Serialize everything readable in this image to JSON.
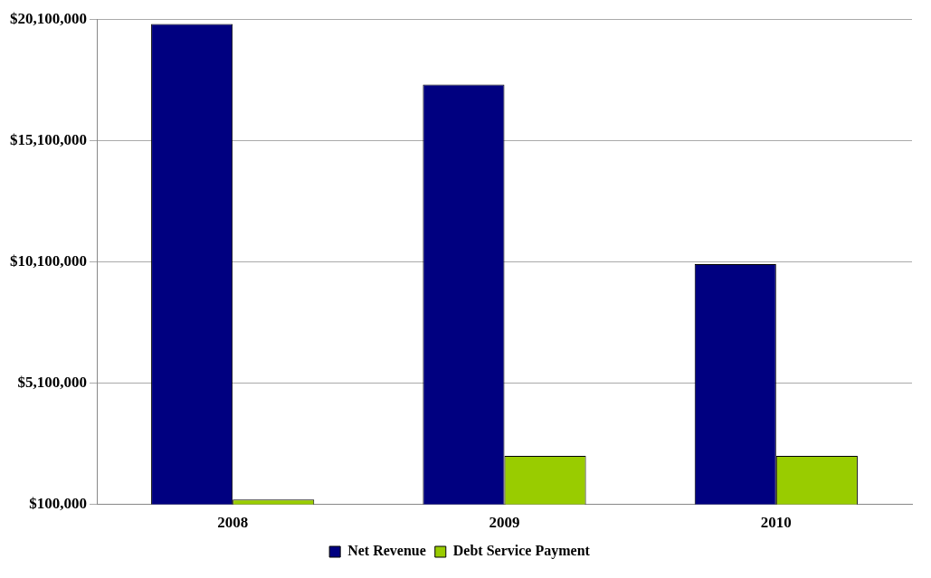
{
  "chart_data": {
    "type": "bar",
    "categories": [
      "2008",
      "2009",
      "2010"
    ],
    "series": [
      {
        "name": "Net Revenue",
        "color": "#000080",
        "values": [
          19900000,
          17400000,
          10000000
        ]
      },
      {
        "name": "Debt Service Payment",
        "color": "#99cc00",
        "values": [
          300000,
          2100000,
          2100000
        ]
      }
    ],
    "ylim": [
      100000,
      20100000
    ],
    "yticks": [
      {
        "value": 100000,
        "label": "$100,000"
      },
      {
        "value": 5100000,
        "label": "$5,100,000"
      },
      {
        "value": 10100000,
        "label": "$10,100,000"
      },
      {
        "value": 15100000,
        "label": "$15,100,000"
      },
      {
        "value": 20100000,
        "label": "$20,100,000"
      }
    ],
    "grid": "y",
    "legend": "bottom"
  }
}
